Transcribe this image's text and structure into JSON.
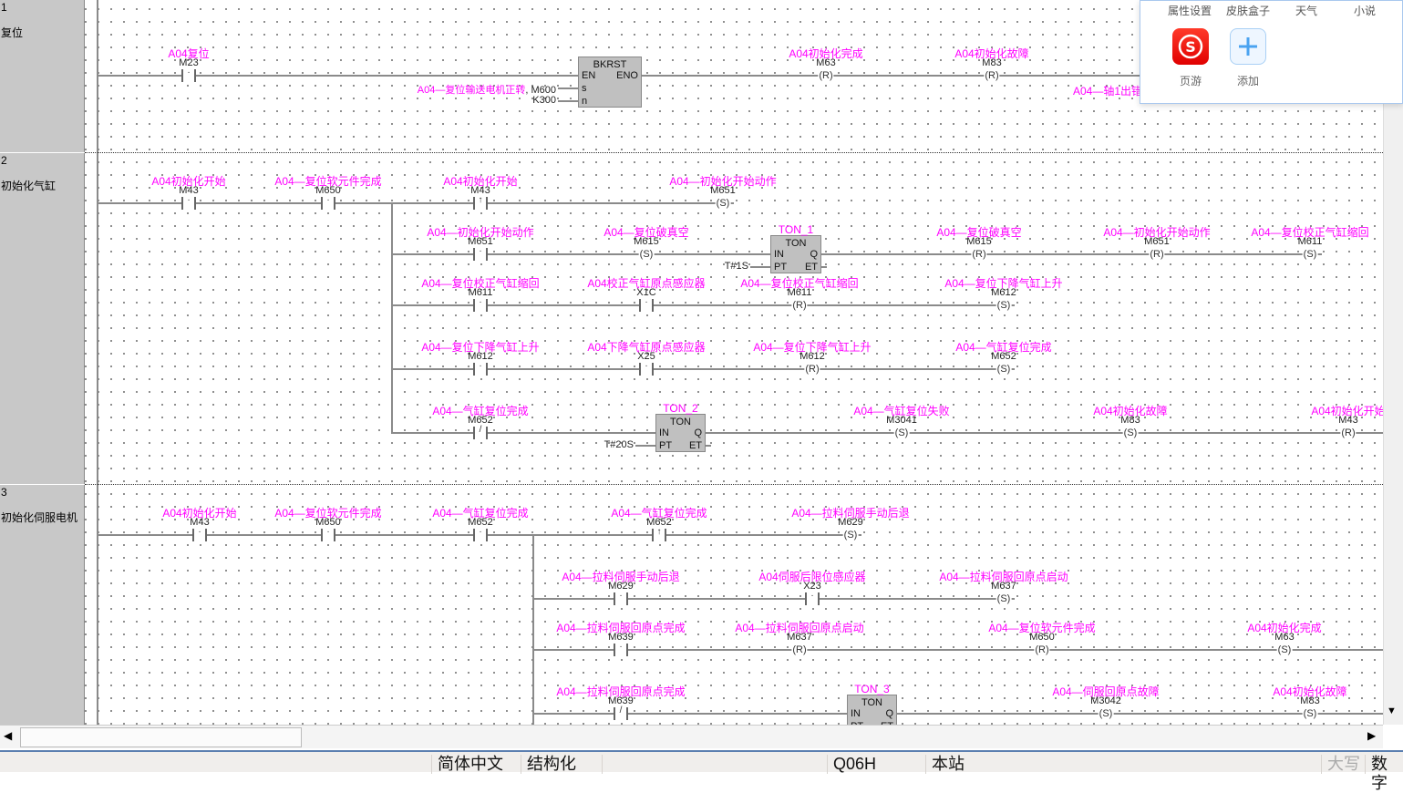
{
  "rungs": [
    {
      "number": "1",
      "name": "复位",
      "rows": [
        {
          "elements": [
            {
              "kind": "contact_no",
              "label": "A04复位",
              "device": "M23"
            },
            {
              "kind": "block",
              "name": "BKRST",
              "instance": "",
              "inputs": [
                "EN",
                "s",
                "n"
              ],
              "outputs": [
                "ENO"
              ],
              "input_values": [
                "",
                "A04—复位输送电机正转, M600",
                "K300"
              ]
            },
            {
              "kind": "coil",
              "op": "R",
              "label": "A04初始化完成",
              "device": "M63"
            },
            {
              "kind": "coil",
              "op": "R",
              "label": "A04初始化故障",
              "device": "M83"
            }
          ]
        }
      ],
      "extra_text": "A04—轴1出错"
    },
    {
      "number": "2",
      "name": "初始化气缸",
      "rows": [
        {
          "elements": [
            {
              "kind": "contact_no",
              "label": "A04初始化开始",
              "device": "M43"
            },
            {
              "kind": "contact_no",
              "label": "A04—复位软元件完成",
              "device": "M650"
            },
            {
              "kind": "contact_rise",
              "label": "A04初始化开始",
              "device": "M43"
            },
            {
              "kind": "coil",
              "op": "S",
              "label": "A04—初始化开始动作",
              "device": "M651"
            }
          ]
        },
        {
          "elements": [
            {
              "kind": "contact_no",
              "label": "A04—初始化开始动作",
              "device": "M651"
            },
            {
              "kind": "coil",
              "op": "S",
              "label": "A04—复位破真空",
              "device": "M615"
            },
            {
              "kind": "block",
              "name": "TON",
              "instance": "TON_1",
              "inputs": [
                "IN",
                "PT"
              ],
              "outputs": [
                "Q",
                "ET"
              ],
              "input_values": [
                "",
                "T#1S"
              ]
            },
            {
              "kind": "coil",
              "op": "R",
              "label": "A04—复位破真空",
              "device": "M615"
            },
            {
              "kind": "coil",
              "op": "R",
              "label": "A04—初始化开始动作",
              "device": "M651"
            },
            {
              "kind": "coil",
              "op": "S",
              "label": "A04—复位校正气缸缩回",
              "device": "M611"
            }
          ]
        },
        {
          "elements": [
            {
              "kind": "contact_no",
              "label": "A04—复位校正气缸缩回",
              "device": "M611"
            },
            {
              "kind": "contact_no",
              "label": "A04校正气缸原点感应器",
              "device": "X1C"
            },
            {
              "kind": "coil",
              "op": "R",
              "label": "A04—复位校正气缸缩回",
              "device": "M611"
            },
            {
              "kind": "coil",
              "op": "S",
              "label": "A04—复位下降气缸上升",
              "device": "M612"
            }
          ]
        },
        {
          "elements": [
            {
              "kind": "contact_no",
              "label": "A04—复位下降气缸上升",
              "device": "M612"
            },
            {
              "kind": "contact_no",
              "label": "A04下降气缸原点感应器",
              "device": "X25"
            },
            {
              "kind": "coil",
              "op": "R",
              "label": "A04—复位下降气缸上升",
              "device": "M612"
            },
            {
              "kind": "coil",
              "op": "S",
              "label": "A04—气缸复位完成",
              "device": "M652"
            }
          ]
        },
        {
          "elements": [
            {
              "kind": "contact_nc",
              "label": "A04—气缸复位完成",
              "device": "M652"
            },
            {
              "kind": "block",
              "name": "TON",
              "instance": "TON_2",
              "inputs": [
                "IN",
                "PT"
              ],
              "outputs": [
                "Q",
                "ET"
              ],
              "input_values": [
                "",
                "T#20S"
              ]
            },
            {
              "kind": "coil",
              "op": "S",
              "label": "A04—气缸复位失败",
              "device": "M3041"
            },
            {
              "kind": "coil",
              "op": "S",
              "label": "A04初始化故障",
              "device": "M83"
            },
            {
              "kind": "coil",
              "op": "R",
              "label": "A04初始化开始",
              "device": "M43"
            }
          ]
        }
      ]
    },
    {
      "number": "3",
      "name": "初始化伺服电机",
      "rows": [
        {
          "elements": [
            {
              "kind": "contact_no",
              "label": "A04初始化开始",
              "device": "M43"
            },
            {
              "kind": "contact_no",
              "label": "A04—复位软元件完成",
              "device": "M650"
            },
            {
              "kind": "contact_no",
              "label": "A04—气缸复位完成",
              "device": "M652"
            },
            {
              "kind": "contact_rise",
              "label": "A04—气缸复位完成",
              "device": "M652"
            },
            {
              "kind": "coil",
              "op": "S",
              "label": "A04—拉料伺服手动后退",
              "device": "M629"
            }
          ]
        },
        {
          "elements": [
            {
              "kind": "contact_no",
              "label": "A04—拉料伺服手动后退",
              "device": "M629"
            },
            {
              "kind": "contact_no",
              "label": "A04伺服后限位感应器",
              "device": "X23"
            },
            {
              "kind": "coil",
              "op": "S",
              "label": "A04—拉料伺服回原点启动",
              "device": "M637"
            }
          ]
        },
        {
          "elements": [
            {
              "kind": "contact_no",
              "label": "A04—拉料伺服回原点完成",
              "device": "M639"
            },
            {
              "kind": "coil",
              "op": "R",
              "label": "A04—拉料伺服回原点启动",
              "device": "M637"
            },
            {
              "kind": "coil",
              "op": "R",
              "label": "A04—复位软元件完成",
              "device": "M650"
            },
            {
              "kind": "coil",
              "op": "S",
              "label": "A04初始化完成",
              "device": "M63"
            }
          ]
        },
        {
          "elements": [
            {
              "kind": "contact_nc",
              "label": "A04—拉料伺服回原点完成",
              "device": "M639"
            },
            {
              "kind": "block",
              "name": "TON",
              "instance": "TON_3",
              "inputs": [
                "IN",
                "PT"
              ],
              "outputs": [
                "Q",
                "ET"
              ],
              "input_values": [
                "",
                ""
              ]
            },
            {
              "kind": "coil",
              "op": "S",
              "label": "A04—伺服回原点故障",
              "device": "M3042"
            },
            {
              "kind": "coil",
              "op": "S",
              "label": "A04初始化故障",
              "device": "M83"
            }
          ]
        }
      ]
    }
  ],
  "popup": {
    "tabs": [
      "属性设置",
      "皮肤盒子",
      "天气",
      "小说"
    ],
    "apps": [
      {
        "label": "页游",
        "icon": "game-s-icon",
        "color": "#f01010"
      },
      {
        "label": "添加",
        "icon": "plus-icon",
        "color": "#4aa3f0"
      }
    ]
  },
  "status": {
    "language": "简体中文",
    "mode": "结构化",
    "cpu": "Q06H",
    "station": "本站",
    "caps": "大写",
    "num": "数字"
  },
  "colors": {
    "comment": "#ff00ff",
    "block": "#c0c0c0",
    "wire": "#8a8a8a"
  }
}
